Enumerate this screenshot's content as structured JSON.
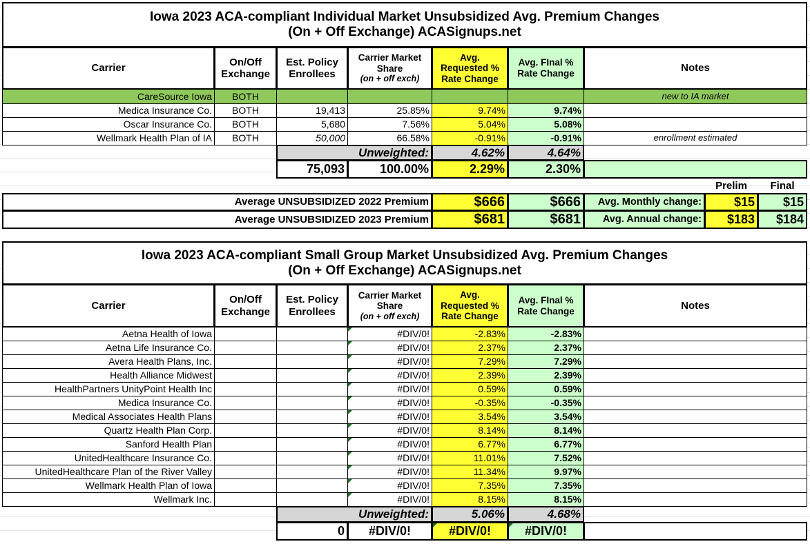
{
  "individual": {
    "title_line1": "Iowa 2023 ACA-compliant Individual Market Unsubsidized Avg. Premium Changes",
    "title_line2": "(On + Off Exchange) ACASignups.net",
    "headers": {
      "carrier": "Carrier",
      "exchange": "On/Off Exchange",
      "enrollees": "Est. Policy Enrollees",
      "share": "Carrier Market Share",
      "share_sub": "(on + off exch)",
      "requested": "Avg. Requested % Rate Change",
      "final": "Avg. FInal % Rate Change",
      "notes": "Notes"
    },
    "rows": [
      {
        "carrier": "CareSource Iowa",
        "exchange": "BOTH",
        "enrollees": "",
        "share": "",
        "requested": "",
        "final": "",
        "notes": "new to IA market",
        "highlight": true
      },
      {
        "carrier": "Medica Insurance Co.",
        "exchange": "BOTH",
        "enrollees": "19,413",
        "share": "25.85%",
        "requested": "9.74%",
        "final": "9.74%",
        "notes": ""
      },
      {
        "carrier": "Oscar Insurance Co.",
        "exchange": "BOTH",
        "enrollees": "5,680",
        "share": "7.56%",
        "requested": "5.04%",
        "final": "5.08%",
        "notes": ""
      },
      {
        "carrier": "Wellmark Health Plan of IA",
        "exchange": "BOTH",
        "enrollees": "50,000",
        "share": "66.58%",
        "requested": "-0.91%",
        "final": "-0.91%",
        "notes": "enrollment estimated",
        "enrollees_estimated": true
      }
    ],
    "unweighted": {
      "label": "Unweighted:",
      "requested": "4.62%",
      "final": "4.64%"
    },
    "totals": {
      "enrollees": "75,093",
      "share": "100.00%",
      "requested": "2.29%",
      "final": "2.30%"
    },
    "premiums": {
      "prelim_label": "Prelim",
      "final_label": "Final",
      "rows": [
        {
          "label": "Average UNSUBSIDIZED 2022 Premium",
          "requested": "$666",
          "final": "$666",
          "change_label": "Avg. Monthly change:",
          "change_prelim": "$15",
          "change_final": "$15"
        },
        {
          "label": "Average UNSUBSIDIZED 2023 Premium",
          "requested": "$681",
          "final": "$681",
          "change_label": "Avg. Annual change:",
          "change_prelim": "$183",
          "change_final": "$184"
        }
      ]
    }
  },
  "small_group": {
    "title_line1": "Iowa 2023 ACA-compliant Small Group Market Unsubsidized Avg. Premium Changes",
    "title_line2": "(On + Off Exchange) ACASignups.net",
    "headers": {
      "carrier": "Carrier",
      "exchange": "On/Off Exchange",
      "enrollees": "Est. Policy Enrollees",
      "share": "Carrier Market Share",
      "share_sub": "(on + off exch)",
      "requested": "Avg. Requested % Rate Change",
      "final": "Avg. FInal % Rate Change",
      "notes": "Notes"
    },
    "rows": [
      {
        "carrier": "Aetna Health of Iowa",
        "share": "#DIV/0!",
        "requested": "-2.83%",
        "final": "-2.83%"
      },
      {
        "carrier": "Aetna Life Insurance Co.",
        "share": "#DIV/0!",
        "requested": "2.37%",
        "final": "2.37%"
      },
      {
        "carrier": "Avera Health Plans, Inc.",
        "share": "#DIV/0!",
        "requested": "7.29%",
        "final": "7.29%"
      },
      {
        "carrier": "Health Alliance Midwest",
        "share": "#DIV/0!",
        "requested": "2.39%",
        "final": "2.39%"
      },
      {
        "carrier": "HealthPartners UnityPoint Health Inc",
        "share": "#DIV/0!",
        "requested": "0.59%",
        "final": "0.59%"
      },
      {
        "carrier": "Medica Insurance Co.",
        "share": "#DIV/0!",
        "requested": "-0.35%",
        "final": "-0.35%"
      },
      {
        "carrier": "Medical Associates Health Plans",
        "share": "#DIV/0!",
        "requested": "3.54%",
        "final": "3.54%"
      },
      {
        "carrier": "Quartz Health Plan Corp.",
        "share": "#DIV/0!",
        "requested": "8.14%",
        "final": "8.14%"
      },
      {
        "carrier": "Sanford Health Plan",
        "share": "#DIV/0!",
        "requested": "6.77%",
        "final": "6.77%"
      },
      {
        "carrier": "UnitedHealthcare Insurance Co.",
        "share": "#DIV/0!",
        "requested": "11.01%",
        "final": "7.52%"
      },
      {
        "carrier": "UnitedHealthcare Plan of the River Valley",
        "share": "#DIV/0!",
        "requested": "11.34%",
        "final": "9.97%"
      },
      {
        "carrier": "Wellmark Health Plan of Iowa",
        "share": "#DIV/0!",
        "requested": "7.35%",
        "final": "7.35%"
      },
      {
        "carrier": "Wellmark Inc.",
        "share": "#DIV/0!",
        "requested": "8.15%",
        "final": "8.15%"
      }
    ],
    "unweighted": {
      "label": "Unweighted:",
      "requested": "5.06%",
      "final": "4.68%"
    },
    "totals": {
      "enrollees": "0",
      "share": "#DIV/0!",
      "requested": "#DIV/0!",
      "final": "#DIV/0!"
    }
  },
  "colors": {
    "requested": "#ffff33",
    "final": "#ccffcc",
    "new_carrier_row": "#8fc95c",
    "unweighted": "#d6d6d6",
    "error_indicator": "#1f6b2a"
  }
}
